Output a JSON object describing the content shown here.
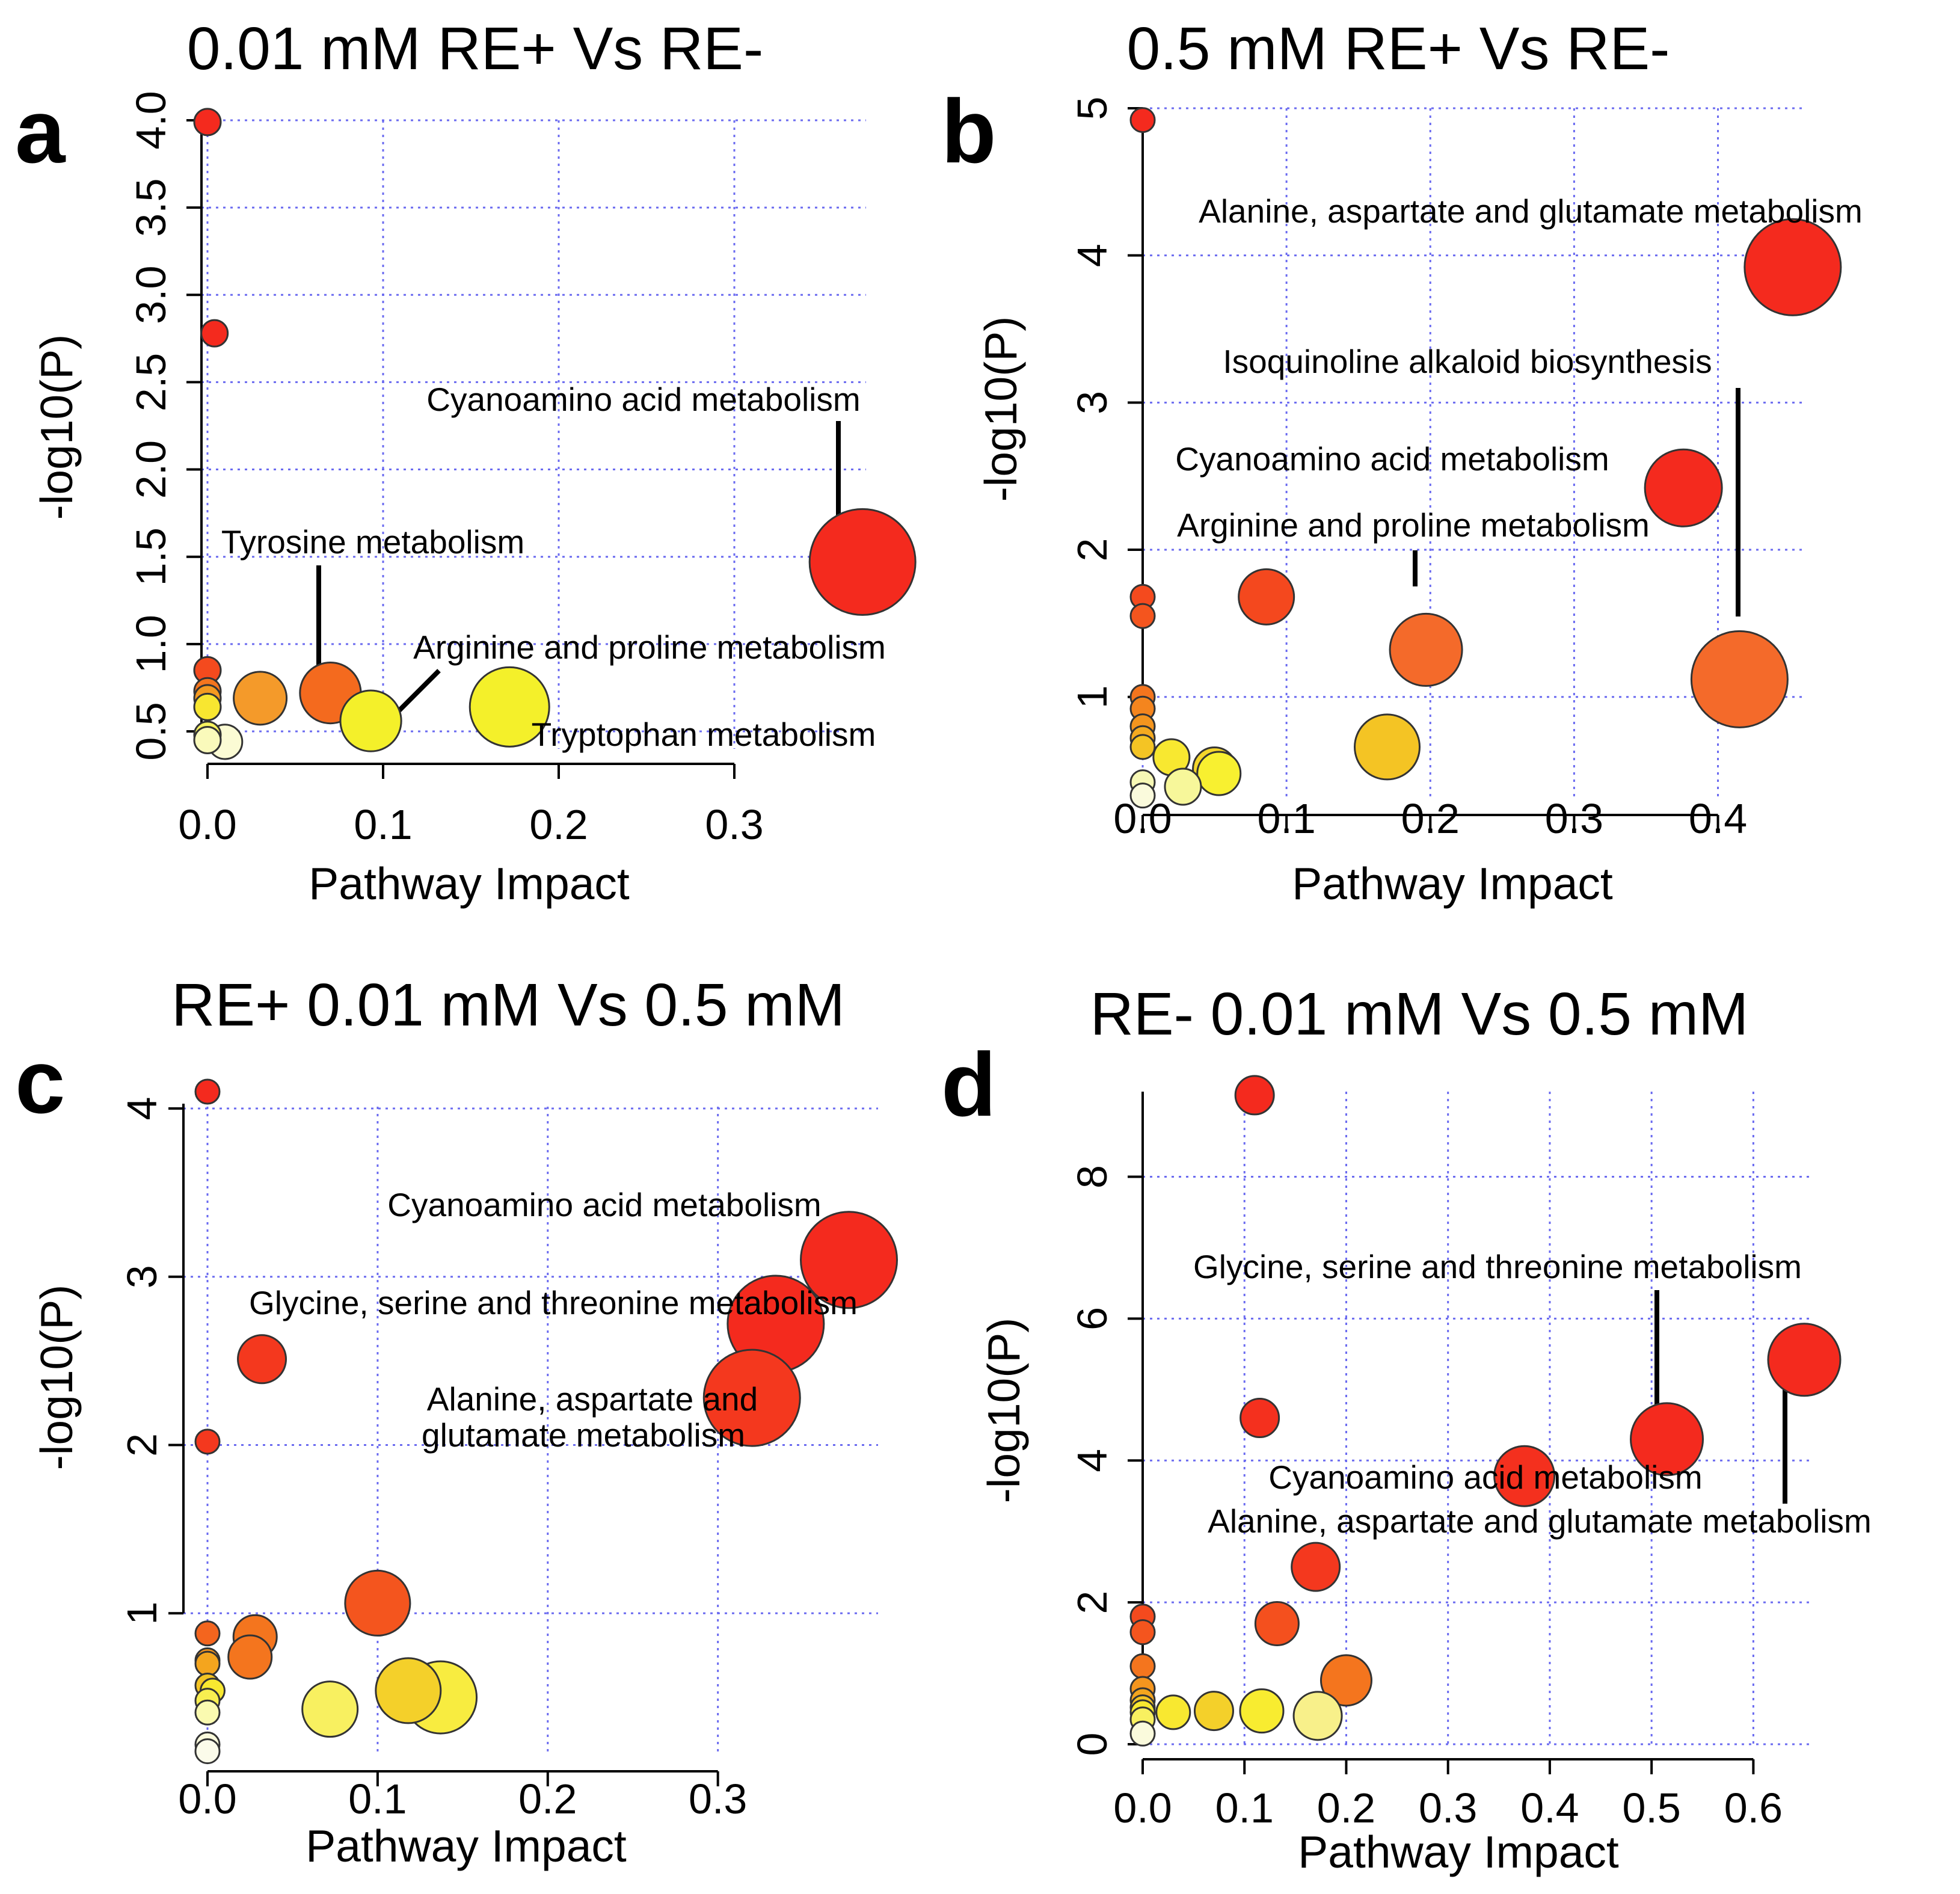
{
  "chart_data": [
    {
      "type": "scatter",
      "letter": "a",
      "title": "0.01 mM RE+ Vs RE-",
      "xlabel": "Pathway Impact",
      "ylabel": "-log10(P)",
      "xlim": [
        0,
        0.375
      ],
      "ylim": [
        0.4,
        4.0
      ],
      "xticks": [
        {
          "v": 0.0,
          "label": "0.0"
        },
        {
          "v": 0.1,
          "label": "0.1"
        },
        {
          "v": 0.2,
          "label": "0.2"
        },
        {
          "v": 0.3,
          "label": "0.3"
        }
      ],
      "yticks": [
        {
          "v": 0.5,
          "label": "0.5"
        },
        {
          "v": 1.0,
          "label": "1.0"
        },
        {
          "v": 1.5,
          "label": "1.5"
        },
        {
          "v": 2.0,
          "label": "2.0"
        },
        {
          "v": 2.5,
          "label": "2.5"
        },
        {
          "v": 3.0,
          "label": "3.0"
        },
        {
          "v": 3.5,
          "label": "3.5"
        },
        {
          "v": 4.0,
          "label": "4.0"
        }
      ],
      "points": [
        {
          "x": 0.0,
          "y": 3.99,
          "size": 1,
          "color": "#f42a1e"
        },
        {
          "x": 0.004,
          "y": 2.78,
          "size": 1,
          "color": "#f42a1e"
        },
        {
          "x": 0.373,
          "y": 1.47,
          "size": 4,
          "color": "#f42a1e"
        },
        {
          "x": 0.0,
          "y": 0.85,
          "size": 1,
          "color": "#f44a1e"
        },
        {
          "x": 0.0,
          "y": 0.73,
          "size": 1,
          "color": "#f4751e"
        },
        {
          "x": 0.0,
          "y": 0.69,
          "size": 1,
          "color": "#f49a20"
        },
        {
          "x": 0.0,
          "y": 0.64,
          "size": 1,
          "color": "#f8e630"
        },
        {
          "x": 0.0,
          "y": 0.48,
          "size": 1,
          "color": "#f7f25f"
        },
        {
          "x": 0.0,
          "y": 0.45,
          "size": 1,
          "color": "#fafabb"
        },
        {
          "x": 0.01,
          "y": 0.44,
          "size": 1.3,
          "color": "#fbfbd4"
        },
        {
          "x": 0.03,
          "y": 0.69,
          "size": 2,
          "color": "#f49a2a"
        },
        {
          "x": 0.07,
          "y": 0.72,
          "size": 2.3,
          "color": "#f46a1e"
        },
        {
          "x": 0.093,
          "y": 0.56,
          "size": 2.3,
          "color": "#f4f02a"
        },
        {
          "x": 0.172,
          "y": 0.64,
          "size": 3,
          "color": "#f4f02a"
        }
      ],
      "annotations": [
        "Cyanoamino acid metabolism",
        "Tyrosine metabolism",
        "Arginine and proline metabolism",
        "Tryptophan metabolism"
      ]
    },
    {
      "type": "scatter",
      "letter": "b",
      "title": "0.5 mM RE+ Vs RE-",
      "xlabel": "Pathway Impact",
      "ylabel": "-log10(P)",
      "xlim": [
        0,
        0.46
      ],
      "ylim": [
        0.3,
        5.0
      ],
      "xticks": [
        {
          "v": 0.0,
          "label": "0.0"
        },
        {
          "v": 0.1,
          "label": "0.1"
        },
        {
          "v": 0.2,
          "label": "0.2"
        },
        {
          "v": 0.3,
          "label": "0.3"
        },
        {
          "v": 0.4,
          "label": "0.4"
        }
      ],
      "yticks": [
        {
          "v": 1,
          "label": "1"
        },
        {
          "v": 2,
          "label": "2"
        },
        {
          "v": 3,
          "label": "3"
        },
        {
          "v": 4,
          "label": "4"
        },
        {
          "v": 5,
          "label": "5"
        }
      ],
      "points": [
        {
          "x": 0.0,
          "y": 4.92,
          "size": 1,
          "color": "#f42a1e"
        },
        {
          "x": 0.452,
          "y": 3.92,
          "size": 4,
          "color": "#f42a1e"
        },
        {
          "x": 0.376,
          "y": 2.42,
          "size": 3.2,
          "color": "#f42a1e"
        },
        {
          "x": 0.086,
          "y": 1.68,
          "size": 2.3,
          "color": "#f4481e"
        },
        {
          "x": 0.197,
          "y": 1.32,
          "size": 3,
          "color": "#f46a2a"
        },
        {
          "x": 0.415,
          "y": 1.12,
          "size": 4,
          "color": "#f46a2a"
        },
        {
          "x": 0.0,
          "y": 1.68,
          "size": 1,
          "color": "#f44a1e"
        },
        {
          "x": 0.0,
          "y": 1.55,
          "size": 1,
          "color": "#f4551e"
        },
        {
          "x": 0.0,
          "y": 1.0,
          "size": 1,
          "color": "#f4751e"
        },
        {
          "x": 0.0,
          "y": 0.92,
          "size": 1,
          "color": "#f4851e"
        },
        {
          "x": 0.0,
          "y": 0.8,
          "size": 1,
          "color": "#f4951e"
        },
        {
          "x": 0.0,
          "y": 0.72,
          "size": 1,
          "color": "#f4aa20"
        },
        {
          "x": 0.0,
          "y": 0.66,
          "size": 1,
          "color": "#f4c424"
        },
        {
          "x": 0.0,
          "y": 0.42,
          "size": 1,
          "color": "#f7f8b5"
        },
        {
          "x": 0.0,
          "y": 0.33,
          "size": 1,
          "color": "#fafadc"
        },
        {
          "x": 0.02,
          "y": 0.59,
          "size": 1.5,
          "color": "#f8e830"
        },
        {
          "x": 0.028,
          "y": 0.39,
          "size": 1.5,
          "color": "#f7f79a"
        },
        {
          "x": 0.05,
          "y": 0.51,
          "size": 1.8,
          "color": "#f4d52a"
        },
        {
          "x": 0.053,
          "y": 0.48,
          "size": 1.8,
          "color": "#f8f030"
        },
        {
          "x": 0.17,
          "y": 0.66,
          "size": 2.7,
          "color": "#f4c424"
        }
      ],
      "annotations": [
        "Alanine, aspartate and glutamate metabolism",
        "Isoquinoline alkaloid biosynthesis",
        "Cyanoamino acid metabolism",
        "Arginine and proline metabolism"
      ]
    },
    {
      "type": "scatter",
      "letter": "c",
      "title": "RE+ 0.01 mM Vs 0.5 mM",
      "xlabel": "Pathway Impact",
      "ylabel": "-log10(P)",
      "xlim": [
        0,
        0.38
      ],
      "ylim": [
        0.15,
        4.1
      ],
      "xticks": [
        {
          "v": 0.0,
          "label": "0.0"
        },
        {
          "v": 0.1,
          "label": "0.1"
        },
        {
          "v": 0.2,
          "label": "0.2"
        },
        {
          "v": 0.3,
          "label": "0.3"
        }
      ],
      "yticks": [
        {
          "v": 1,
          "label": "1"
        },
        {
          "v": 2,
          "label": "2"
        },
        {
          "v": 3,
          "label": "3"
        },
        {
          "v": 4,
          "label": "4"
        }
      ],
      "points": [
        {
          "x": 0.0,
          "y": 4.1,
          "size": 1,
          "color": "#f42a1e"
        },
        {
          "x": 0.377,
          "y": 3.1,
          "size": 4,
          "color": "#f42a1e"
        },
        {
          "x": 0.334,
          "y": 2.72,
          "size": 4,
          "color": "#f42a1e"
        },
        {
          "x": 0.32,
          "y": 2.28,
          "size": 4,
          "color": "#f4381e"
        },
        {
          "x": 0.032,
          "y": 2.51,
          "size": 2,
          "color": "#f4381e"
        },
        {
          "x": 0.0,
          "y": 2.02,
          "size": 1,
          "color": "#f4381e"
        },
        {
          "x": 0.1,
          "y": 1.06,
          "size": 2.7,
          "color": "#f4551e"
        },
        {
          "x": 0.0,
          "y": 0.88,
          "size": 1,
          "color": "#f4651e"
        },
        {
          "x": 0.028,
          "y": 0.86,
          "size": 1.8,
          "color": "#f4751e"
        },
        {
          "x": 0.025,
          "y": 0.74,
          "size": 1.8,
          "color": "#f4751e"
        },
        {
          "x": 0.0,
          "y": 0.72,
          "size": 1,
          "color": "#f4951e"
        },
        {
          "x": 0.0,
          "y": 0.7,
          "size": 1,
          "color": "#f4a51e"
        },
        {
          "x": 0.0,
          "y": 0.57,
          "size": 1,
          "color": "#f4c424"
        },
        {
          "x": 0.003,
          "y": 0.54,
          "size": 1,
          "color": "#f8e830"
        },
        {
          "x": 0.0,
          "y": 0.48,
          "size": 1,
          "color": "#f8ee50"
        },
        {
          "x": 0.0,
          "y": 0.41,
          "size": 1,
          "color": "#fafab0"
        },
        {
          "x": 0.0,
          "y": 0.22,
          "size": 1,
          "color": "#fafadc"
        },
        {
          "x": 0.0,
          "y": 0.18,
          "size": 1,
          "color": "#fbfbea"
        },
        {
          "x": 0.072,
          "y": 0.43,
          "size": 2.3,
          "color": "#f8f060"
        },
        {
          "x": 0.118,
          "y": 0.54,
          "size": 2.7,
          "color": "#f4d02a"
        },
        {
          "x": 0.137,
          "y": 0.5,
          "size": 3,
          "color": "#f8ec40"
        }
      ],
      "annotations": [
        "Cyanoamino acid metabolism",
        "Glycine, serine and threonine metabolism",
        "Alanine, aspartate and",
        "glutamate metabolism"
      ]
    },
    {
      "type": "scatter",
      "letter": "d",
      "title": "RE- 0.01 mM Vs 0.5 mM",
      "xlabel": "Pathway Impact",
      "ylabel": "-log10(P)",
      "xlim": [
        0,
        0.65
      ],
      "ylim": [
        0,
        9.2
      ],
      "xticks": [
        {
          "v": 0.0,
          "label": "0.0"
        },
        {
          "v": 0.1,
          "label": "0.1"
        },
        {
          "v": 0.2,
          "label": "0.2"
        },
        {
          "v": 0.3,
          "label": "0.3"
        },
        {
          "v": 0.4,
          "label": "0.4"
        },
        {
          "v": 0.5,
          "label": "0.5"
        },
        {
          "v": 0.6,
          "label": "0.6"
        }
      ],
      "yticks": [
        {
          "v": 0,
          "label": "0"
        },
        {
          "v": 2,
          "label": "2"
        },
        {
          "v": 4,
          "label": "4"
        },
        {
          "v": 6,
          "label": "6"
        },
        {
          "v": 8,
          "label": "8"
        }
      ],
      "points": [
        {
          "x": 0.11,
          "y": 9.15,
          "size": 1.6,
          "color": "#f42a1e"
        },
        {
          "x": 0.65,
          "y": 5.42,
          "size": 3,
          "color": "#f42a1e"
        },
        {
          "x": 0.515,
          "y": 4.3,
          "size": 3,
          "color": "#f42a1e"
        },
        {
          "x": 0.115,
          "y": 4.6,
          "size": 1.6,
          "color": "#f4301e"
        },
        {
          "x": 0.375,
          "y": 3.78,
          "size": 2.5,
          "color": "#f4301e"
        },
        {
          "x": 0.17,
          "y": 2.5,
          "size": 2,
          "color": "#f4381e"
        },
        {
          "x": 0.132,
          "y": 1.7,
          "size": 1.8,
          "color": "#f4501e"
        },
        {
          "x": 0.2,
          "y": 0.9,
          "size": 2.1,
          "color": "#f4751e"
        },
        {
          "x": 0.0,
          "y": 1.8,
          "size": 1,
          "color": "#f44a1e"
        },
        {
          "x": 0.0,
          "y": 1.58,
          "size": 1,
          "color": "#f4551e"
        },
        {
          "x": 0.0,
          "y": 1.1,
          "size": 1,
          "color": "#f4751e"
        },
        {
          "x": 0.0,
          "y": 0.78,
          "size": 1,
          "color": "#f4951e"
        },
        {
          "x": 0.0,
          "y": 0.62,
          "size": 1,
          "color": "#f4a51e"
        },
        {
          "x": 0.0,
          "y": 0.52,
          "size": 1,
          "color": "#f4c424"
        },
        {
          "x": 0.0,
          "y": 0.45,
          "size": 1,
          "color": "#f8e830"
        },
        {
          "x": 0.0,
          "y": 0.35,
          "size": 1,
          "color": "#f8f060"
        },
        {
          "x": 0.0,
          "y": 0.15,
          "size": 1,
          "color": "#fafadc"
        },
        {
          "x": 0.03,
          "y": 0.45,
          "size": 1.4,
          "color": "#f8e830"
        },
        {
          "x": 0.07,
          "y": 0.47,
          "size": 1.6,
          "color": "#f4d02a"
        },
        {
          "x": 0.117,
          "y": 0.47,
          "size": 1.8,
          "color": "#f8ec30"
        },
        {
          "x": 0.172,
          "y": 0.4,
          "size": 2,
          "color": "#f8f08a"
        }
      ],
      "annotations": [
        "Glycine, serine and threonine metabolism",
        "Cyanoamino acid metabolism",
        "Alanine, aspartate and glutamate metabolism"
      ]
    }
  ]
}
